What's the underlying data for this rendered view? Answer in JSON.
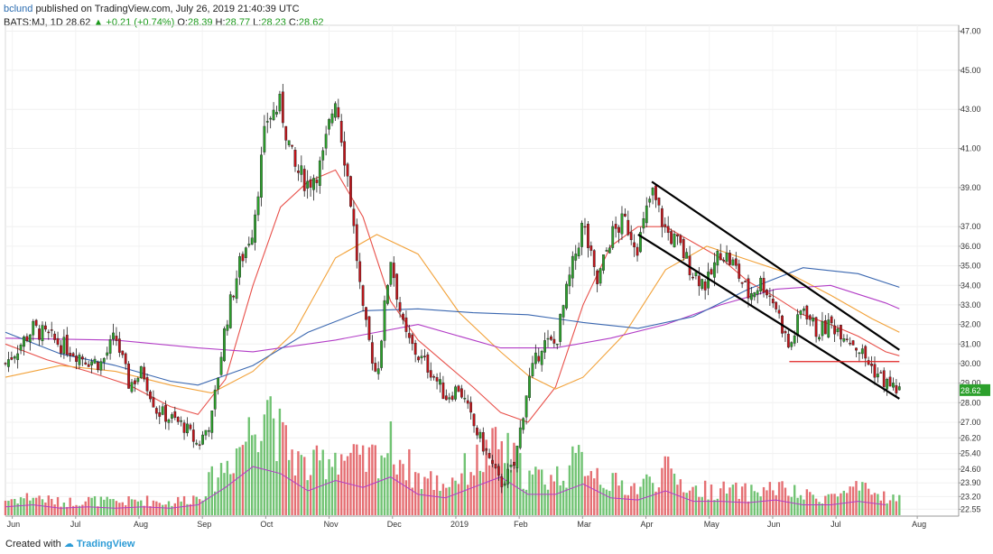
{
  "header": {
    "user": "bclund",
    "published": "published on TradingView.com, July 26, 2019 21:40:39 UTC",
    "symbol": "BATS:MJ, 1D",
    "price": "28.62",
    "change": "+0.21 (+0.74%)",
    "o_label": "O:",
    "o": "28.39",
    "h_label": "H:",
    "h": "28.77",
    "l_label": "L:",
    "l": "28.23",
    "c_label": "C:",
    "c": "28.62"
  },
  "footer": {
    "created": "Created with",
    "brand": "TradingView"
  },
  "colors": {
    "up": "#2ca02c",
    "down": "#c0141a",
    "ma_red": "#e8504a",
    "ma_orange": "#f2a23a",
    "ma_purple": "#b23cc6",
    "ma_blue": "#3a67b0",
    "support": "#e02020",
    "channel": "#000000"
  },
  "chart_data": {
    "type": "candlestick",
    "price_axis_ticks": [
      "47.00",
      "45.00",
      "43.00",
      "41.00",
      "39.00",
      "37.00",
      "36.00",
      "35.00",
      "34.00",
      "33.00",
      "32.00",
      "31.00",
      "30.00",
      "29.00",
      "28.00",
      "27.00",
      "26.20",
      "25.40",
      "24.60",
      "23.90",
      "23.20",
      "22.55"
    ],
    "last_price_label": "28.62",
    "x_axis_labels": [
      "Jun",
      "Jul",
      "Aug",
      "Sep",
      "Oct",
      "Nov",
      "Dec",
      "2019",
      "Feb",
      "Mar",
      "Apr",
      "May",
      "Jun",
      "Jul",
      "Aug"
    ],
    "close_series": [
      {
        "x": 0,
        "y": 30.0
      },
      {
        "x": 2,
        "y": 31.8
      },
      {
        "x": 4,
        "y": 31.0
      },
      {
        "x": 6,
        "y": 30.2
      },
      {
        "x": 7,
        "y": 30.0
      },
      {
        "x": 8,
        "y": 31.4
      },
      {
        "x": 9,
        "y": 28.9
      },
      {
        "x": 10,
        "y": 29.6
      },
      {
        "x": 11,
        "y": 27.6
      },
      {
        "x": 12,
        "y": 27.2
      },
      {
        "x": 13,
        "y": 26.8
      },
      {
        "x": 14,
        "y": 25.8
      },
      {
        "x": 15,
        "y": 27.2
      },
      {
        "x": 16,
        "y": 32.0
      },
      {
        "x": 17,
        "y": 35.0
      },
      {
        "x": 18,
        "y": 37.0
      },
      {
        "x": 19,
        "y": 42.5
      },
      {
        "x": 20,
        "y": 43.2
      },
      {
        "x": 21,
        "y": 40.0
      },
      {
        "x": 22,
        "y": 39.2
      },
      {
        "x": 23,
        "y": 40.2
      },
      {
        "x": 24,
        "y": 43.8
      },
      {
        "x": 25,
        "y": 39.0
      },
      {
        "x": 26,
        "y": 32.5
      },
      {
        "x": 27,
        "y": 29.3
      },
      {
        "x": 28,
        "y": 35.5
      },
      {
        "x": 29,
        "y": 31.5
      },
      {
        "x": 30,
        "y": 30.4
      },
      {
        "x": 31,
        "y": 29.6
      },
      {
        "x": 32,
        "y": 28.3
      },
      {
        "x": 33,
        "y": 28.8
      },
      {
        "x": 34,
        "y": 26.9
      },
      {
        "x": 35,
        "y": 25.4
      },
      {
        "x": 36,
        "y": 23.8
      },
      {
        "x": 37,
        "y": 24.8
      },
      {
        "x": 38,
        "y": 29.0
      },
      {
        "x": 39,
        "y": 31.0
      },
      {
        "x": 40,
        "y": 31.0
      },
      {
        "x": 41,
        "y": 34.3
      },
      {
        "x": 42,
        "y": 37.2
      },
      {
        "x": 43,
        "y": 34.0
      },
      {
        "x": 44,
        "y": 36.5
      },
      {
        "x": 45,
        "y": 37.3
      },
      {
        "x": 46,
        "y": 36.0
      },
      {
        "x": 47,
        "y": 38.8
      },
      {
        "x": 48,
        "y": 36.8
      },
      {
        "x": 49,
        "y": 36.0
      },
      {
        "x": 50,
        "y": 34.7
      },
      {
        "x": 51,
        "y": 34.0
      },
      {
        "x": 52,
        "y": 35.8
      },
      {
        "x": 53,
        "y": 35.0
      },
      {
        "x": 54,
        "y": 33.5
      },
      {
        "x": 55,
        "y": 34.2
      },
      {
        "x": 56,
        "y": 33.0
      },
      {
        "x": 57,
        "y": 30.7
      },
      {
        "x": 58,
        "y": 33.0
      },
      {
        "x": 59,
        "y": 31.6
      },
      {
        "x": 60,
        "y": 32.0
      },
      {
        "x": 61,
        "y": 31.6
      },
      {
        "x": 62,
        "y": 30.8
      },
      {
        "x": 63,
        "y": 29.8
      },
      {
        "x": 64,
        "y": 29.0
      },
      {
        "x": 65,
        "y": 28.62
      }
    ],
    "volume_series": [
      {
        "x": 0,
        "y": 0.12
      },
      {
        "x": 2,
        "y": 0.15
      },
      {
        "x": 4,
        "y": 0.1
      },
      {
        "x": 6,
        "y": 0.12
      },
      {
        "x": 8,
        "y": 0.1
      },
      {
        "x": 10,
        "y": 0.12
      },
      {
        "x": 12,
        "y": 0.1
      },
      {
        "x": 14,
        "y": 0.15
      },
      {
        "x": 16,
        "y": 0.4
      },
      {
        "x": 18,
        "y": 0.7
      },
      {
        "x": 19,
        "y": 1.0
      },
      {
        "x": 20,
        "y": 0.6
      },
      {
        "x": 22,
        "y": 0.35
      },
      {
        "x": 24,
        "y": 0.5
      },
      {
        "x": 26,
        "y": 0.4
      },
      {
        "x": 28,
        "y": 0.55
      },
      {
        "x": 30,
        "y": 0.3
      },
      {
        "x": 32,
        "y": 0.25
      },
      {
        "x": 34,
        "y": 0.4
      },
      {
        "x": 36,
        "y": 0.55
      },
      {
        "x": 38,
        "y": 0.3
      },
      {
        "x": 40,
        "y": 0.3
      },
      {
        "x": 42,
        "y": 0.45
      },
      {
        "x": 44,
        "y": 0.25
      },
      {
        "x": 46,
        "y": 0.22
      },
      {
        "x": 48,
        "y": 0.35
      },
      {
        "x": 50,
        "y": 0.2
      },
      {
        "x": 52,
        "y": 0.2
      },
      {
        "x": 54,
        "y": 0.18
      },
      {
        "x": 56,
        "y": 0.22
      },
      {
        "x": 58,
        "y": 0.15
      },
      {
        "x": 60,
        "y": 0.15
      },
      {
        "x": 62,
        "y": 0.2
      },
      {
        "x": 64,
        "y": 0.15
      },
      {
        "x": 65,
        "y": 0.12
      }
    ],
    "moving_averages": [
      {
        "name": "red",
        "points": [
          {
            "x": 0,
            "y": 31.0
          },
          {
            "x": 3,
            "y": 30.2
          },
          {
            "x": 6,
            "y": 29.6
          },
          {
            "x": 9,
            "y": 28.9
          },
          {
            "x": 12,
            "y": 27.8
          },
          {
            "x": 14,
            "y": 27.4
          },
          {
            "x": 16,
            "y": 29.2
          },
          {
            "x": 18,
            "y": 34.0
          },
          {
            "x": 20,
            "y": 38.0
          },
          {
            "x": 22,
            "y": 39.3
          },
          {
            "x": 24,
            "y": 39.9
          },
          {
            "x": 26,
            "y": 37.5
          },
          {
            "x": 28,
            "y": 33.2
          },
          {
            "x": 30,
            "y": 31.2
          },
          {
            "x": 32,
            "y": 30.0
          },
          {
            "x": 34,
            "y": 28.8
          },
          {
            "x": 36,
            "y": 27.5
          },
          {
            "x": 38,
            "y": 27.0
          },
          {
            "x": 40,
            "y": 28.8
          },
          {
            "x": 42,
            "y": 33.0
          },
          {
            "x": 44,
            "y": 36.0
          },
          {
            "x": 46,
            "y": 37.0
          },
          {
            "x": 48,
            "y": 37.0
          },
          {
            "x": 50,
            "y": 36.2
          },
          {
            "x": 52,
            "y": 35.4
          },
          {
            "x": 54,
            "y": 34.2
          },
          {
            "x": 56,
            "y": 33.4
          },
          {
            "x": 58,
            "y": 32.5
          },
          {
            "x": 60,
            "y": 32.0
          },
          {
            "x": 62,
            "y": 31.4
          },
          {
            "x": 64,
            "y": 30.6
          },
          {
            "x": 65,
            "y": 30.4
          }
        ]
      },
      {
        "name": "orange",
        "points": [
          {
            "x": 0,
            "y": 29.3
          },
          {
            "x": 4,
            "y": 29.9
          },
          {
            "x": 8,
            "y": 29.6
          },
          {
            "x": 12,
            "y": 28.9
          },
          {
            "x": 15,
            "y": 28.5
          },
          {
            "x": 18,
            "y": 29.6
          },
          {
            "x": 21,
            "y": 31.6
          },
          {
            "x": 24,
            "y": 35.4
          },
          {
            "x": 27,
            "y": 36.6
          },
          {
            "x": 30,
            "y": 35.6
          },
          {
            "x": 33,
            "y": 32.6
          },
          {
            "x": 36,
            "y": 30.6
          },
          {
            "x": 38,
            "y": 29.4
          },
          {
            "x": 40,
            "y": 28.7
          },
          {
            "x": 42,
            "y": 29.3
          },
          {
            "x": 45,
            "y": 31.5
          },
          {
            "x": 48,
            "y": 34.8
          },
          {
            "x": 51,
            "y": 36.0
          },
          {
            "x": 54,
            "y": 35.3
          },
          {
            "x": 57,
            "y": 34.6
          },
          {
            "x": 60,
            "y": 33.5
          },
          {
            "x": 63,
            "y": 32.3
          },
          {
            "x": 65,
            "y": 31.6
          }
        ]
      },
      {
        "name": "purple",
        "points": [
          {
            "x": 0,
            "y": 31.3
          },
          {
            "x": 8,
            "y": 31.2
          },
          {
            "x": 14,
            "y": 30.8
          },
          {
            "x": 18,
            "y": 30.6
          },
          {
            "x": 24,
            "y": 31.2
          },
          {
            "x": 30,
            "y": 32.0
          },
          {
            "x": 36,
            "y": 30.8
          },
          {
            "x": 40,
            "y": 30.8
          },
          {
            "x": 44,
            "y": 31.3
          },
          {
            "x": 48,
            "y": 32.0
          },
          {
            "x": 52,
            "y": 33.0
          },
          {
            "x": 56,
            "y": 33.8
          },
          {
            "x": 60,
            "y": 34.0
          },
          {
            "x": 64,
            "y": 33.1
          },
          {
            "x": 65,
            "y": 32.8
          }
        ]
      },
      {
        "name": "blue",
        "points": [
          {
            "x": 0,
            "y": 31.6
          },
          {
            "x": 4,
            "y": 30.5
          },
          {
            "x": 8,
            "y": 29.9
          },
          {
            "x": 12,
            "y": 29.1
          },
          {
            "x": 14,
            "y": 28.9
          },
          {
            "x": 18,
            "y": 29.9
          },
          {
            "x": 22,
            "y": 31.6
          },
          {
            "x": 26,
            "y": 32.7
          },
          {
            "x": 30,
            "y": 32.8
          },
          {
            "x": 34,
            "y": 32.6
          },
          {
            "x": 38,
            "y": 32.5
          },
          {
            "x": 42,
            "y": 32.1
          },
          {
            "x": 46,
            "y": 31.8
          },
          {
            "x": 50,
            "y": 32.4
          },
          {
            "x": 54,
            "y": 33.8
          },
          {
            "x": 58,
            "y": 34.9
          },
          {
            "x": 62,
            "y": 34.6
          },
          {
            "x": 65,
            "y": 33.9
          }
        ]
      }
    ],
    "channel_upper": [
      {
        "x": 47,
        "y": 39.3
      },
      {
        "x": 65,
        "y": 30.7
      }
    ],
    "channel_lower": [
      {
        "x": 46,
        "y": 36.6
      },
      {
        "x": 65,
        "y": 28.2
      }
    ],
    "support_line": [
      {
        "x": 57,
        "y": 30.1
      },
      {
        "x": 65,
        "y": 30.1
      }
    ],
    "xlim": [
      0,
      68
    ],
    "ylim": [
      22.2,
      47.3
    ],
    "grid": true
  }
}
